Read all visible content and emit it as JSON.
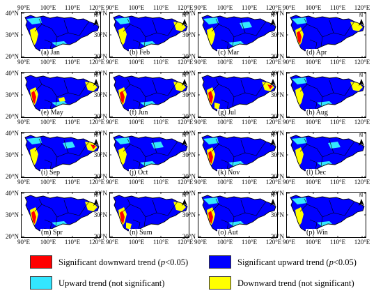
{
  "figure": {
    "axis": {
      "lat_labels": [
        "40°N",
        "30°N",
        "20°N"
      ],
      "lon_labels": [
        "90°E",
        "100°E",
        "110°E",
        "120°E"
      ],
      "north_label": "N"
    },
    "colors": {
      "sig_down": "#ff0000",
      "sig_up": "#0000ff",
      "up": "#33e6ff",
      "down": "#ffff00",
      "boundary": "#000000"
    },
    "panels": [
      {
        "label": "(a) Jan"
      },
      {
        "label": "(b) Feb"
      },
      {
        "label": "(c) Mar"
      },
      {
        "label": "(d) Apr"
      },
      {
        "label": "(e) May"
      },
      {
        "label": "(f) Jun"
      },
      {
        "label": "(g) Jul"
      },
      {
        "label": "(h) Aug"
      },
      {
        "label": "(i) Sep"
      },
      {
        "label": "(j) Oct"
      },
      {
        "label": "(k) Nov"
      },
      {
        "label": "(l) Dec"
      },
      {
        "label": "(m) Spr"
      },
      {
        "label": "(n) Sum"
      },
      {
        "label": "(o) Aut"
      },
      {
        "label": "(p) Win"
      }
    ]
  },
  "legend": {
    "items": [
      {
        "id": "sig_down",
        "text": "Significant downward trend (",
        "italic": "p",
        "suffix": "<0.05)",
        "color": "#ff0000"
      },
      {
        "id": "sig_up",
        "text": "Significant upward trend (",
        "italic": "p",
        "suffix": "<0.05)",
        "color": "#0000ff"
      },
      {
        "id": "up",
        "text": "Upward trend (not significant)",
        "italic": "",
        "suffix": "",
        "color": "#33e6ff"
      },
      {
        "id": "down",
        "text": "Downward trend (not significant)",
        "italic": "",
        "suffix": "",
        "color": "#ffff00"
      }
    ]
  }
}
